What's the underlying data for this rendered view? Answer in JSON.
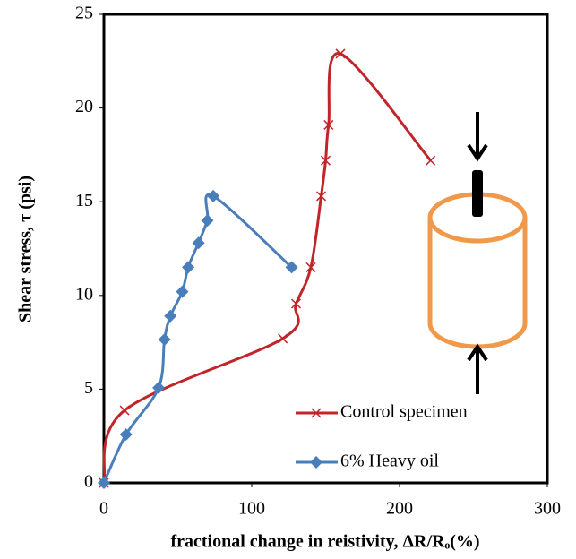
{
  "chart_data": {
    "type": "line",
    "xlabel": "fractional change in reistivity, ΔR/Rₒ(%)",
    "ylabel": "Shear stress, τ (psi)",
    "xlim": [
      0,
      300
    ],
    "xticks": [
      0,
      100,
      200,
      300
    ],
    "ylim": [
      0,
      25
    ],
    "yticks": [
      0,
      5,
      10,
      15,
      20,
      25
    ],
    "grid": false,
    "legend": "lower right",
    "series": [
      {
        "name": "Control specimen",
        "color": "#c0252a",
        "marker": "x",
        "x": [
          0,
          14,
          121,
          130,
          140,
          147,
          150,
          152,
          160,
          221
        ],
        "values": [
          0,
          3.87,
          7.7,
          9.56,
          11.5,
          15.3,
          17.2,
          19.1,
          22.9,
          17.2
        ]
      },
      {
        "name": "6% Heavy oil",
        "color": "#4a7ebb",
        "marker": "diamond",
        "x": [
          0,
          15,
          37,
          41,
          45,
          53,
          57,
          64,
          70,
          74,
          127
        ],
        "values": [
          0,
          2.58,
          5.07,
          7.65,
          8.9,
          10.2,
          11.5,
          12.8,
          14.0,
          15.3,
          11.5
        ]
      }
    ]
  }
}
